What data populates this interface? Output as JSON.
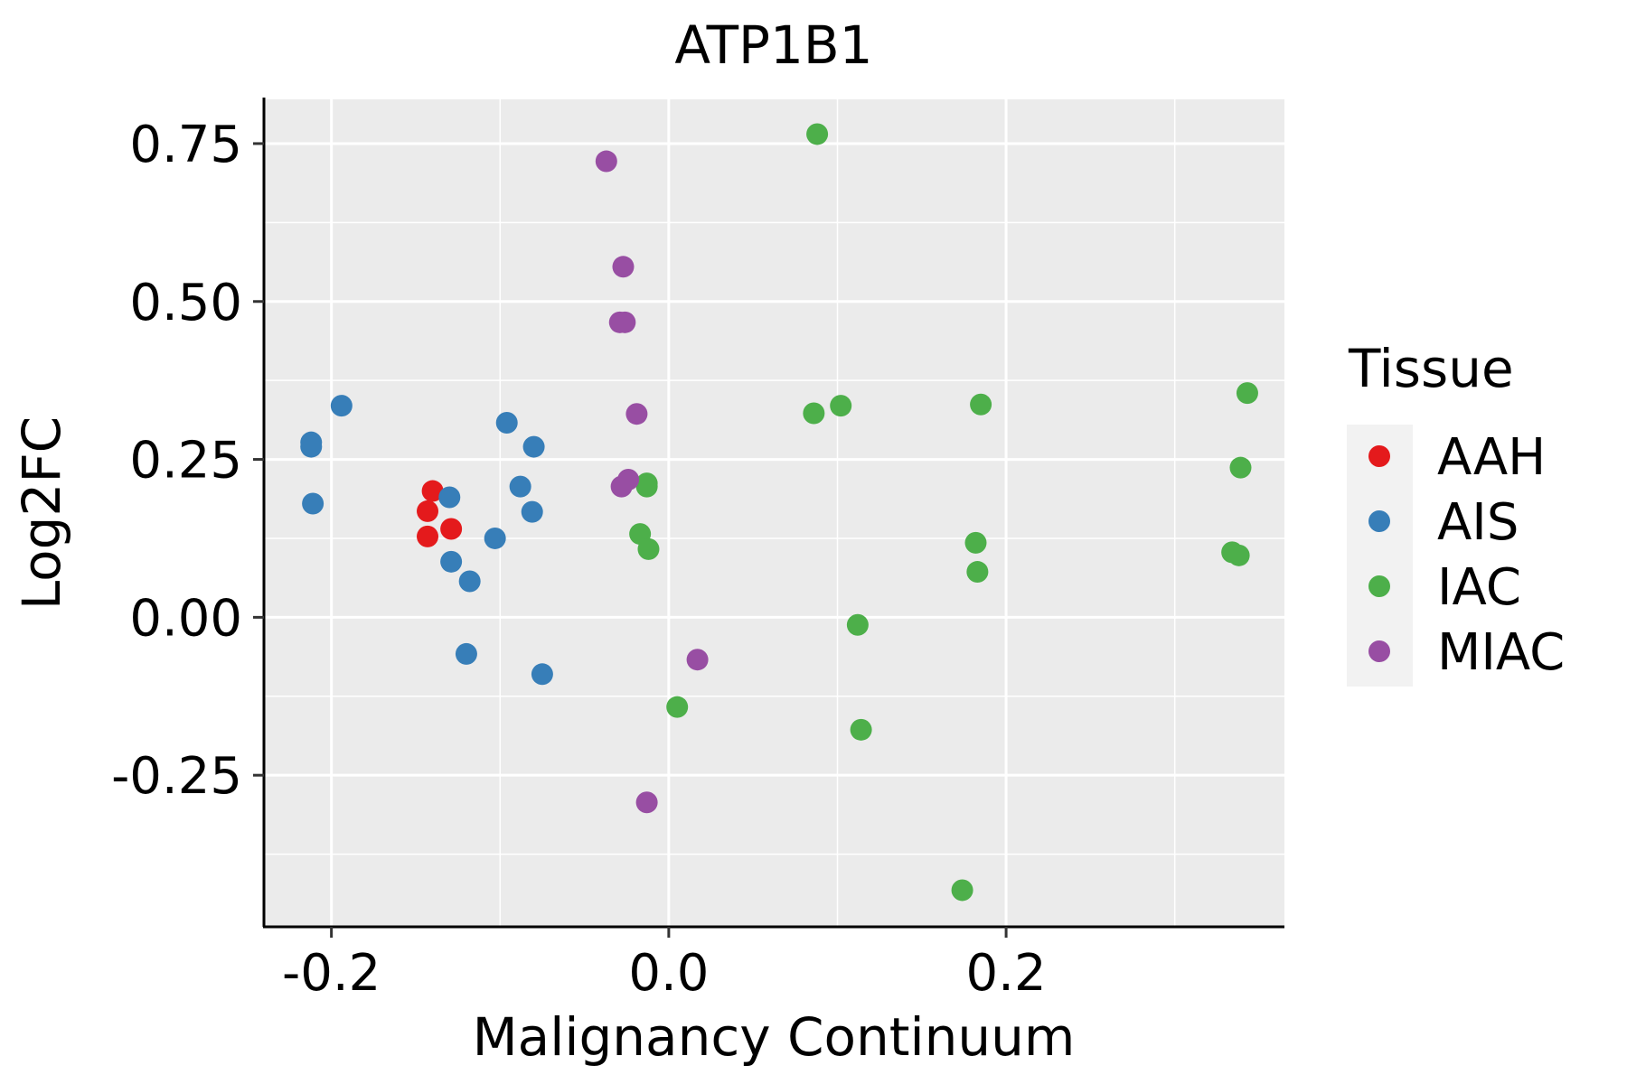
{
  "chart_data": {
    "type": "scatter",
    "title": "ATP1B1",
    "xlabel": "Malignancy Continuum",
    "ylabel": "Log2FC",
    "xlim": [
      -0.24,
      0.365
    ],
    "ylim": [
      -0.49,
      0.82
    ],
    "x_ticks": [
      -0.2,
      0.0,
      0.2
    ],
    "x_tick_labels": [
      "-0.2",
      "0.0",
      "0.2"
    ],
    "y_ticks": [
      -0.25,
      0.0,
      0.25,
      0.5,
      0.75
    ],
    "y_tick_labels": [
      "-0.25",
      "0.00",
      "0.25",
      "0.50",
      "0.75"
    ],
    "grid": true,
    "legend": {
      "title": "Tissue",
      "position": "right"
    },
    "series": [
      {
        "name": "AAH",
        "color": "#e41a1c",
        "points": [
          [
            -0.14,
            0.2
          ],
          [
            -0.143,
            0.168
          ],
          [
            -0.129,
            0.14
          ],
          [
            -0.143,
            0.128
          ]
        ]
      },
      {
        "name": "AIS",
        "color": "#377eb8",
        "points": [
          [
            -0.194,
            0.335
          ],
          [
            -0.212,
            0.277
          ],
          [
            -0.212,
            0.27
          ],
          [
            -0.211,
            0.18
          ],
          [
            -0.096,
            0.308
          ],
          [
            -0.08,
            0.27
          ],
          [
            -0.088,
            0.207
          ],
          [
            -0.081,
            0.167
          ],
          [
            -0.13,
            0.19
          ],
          [
            -0.103,
            0.125
          ],
          [
            -0.129,
            0.088
          ],
          [
            -0.118,
            0.057
          ],
          [
            -0.12,
            -0.058
          ],
          [
            -0.075,
            -0.09
          ]
        ]
      },
      {
        "name": "IAC",
        "color": "#4daf4a",
        "points": [
          [
            0.088,
            0.765
          ],
          [
            0.086,
            0.323
          ],
          [
            0.102,
            0.335
          ],
          [
            0.185,
            0.337
          ],
          [
            0.343,
            0.355
          ],
          [
            0.339,
            0.237
          ],
          [
            0.182,
            0.118
          ],
          [
            0.183,
            0.072
          ],
          [
            0.334,
            0.103
          ],
          [
            0.338,
            0.098
          ],
          [
            -0.013,
            0.212
          ],
          [
            -0.013,
            0.207
          ],
          [
            -0.017,
            0.132
          ],
          [
            -0.012,
            0.108
          ],
          [
            0.112,
            -0.012
          ],
          [
            0.005,
            -0.142
          ],
          [
            0.114,
            -0.178
          ],
          [
            0.174,
            -0.432
          ]
        ]
      },
      {
        "name": "MIAC",
        "color": "#984ea3",
        "points": [
          [
            -0.037,
            0.722
          ],
          [
            -0.027,
            0.555
          ],
          [
            -0.029,
            0.467
          ],
          [
            -0.026,
            0.467
          ],
          [
            -0.019,
            0.322
          ],
          [
            -0.024,
            0.218
          ],
          [
            -0.028,
            0.207
          ],
          [
            0.017,
            -0.067
          ],
          [
            -0.013,
            -0.293
          ]
        ]
      }
    ]
  }
}
